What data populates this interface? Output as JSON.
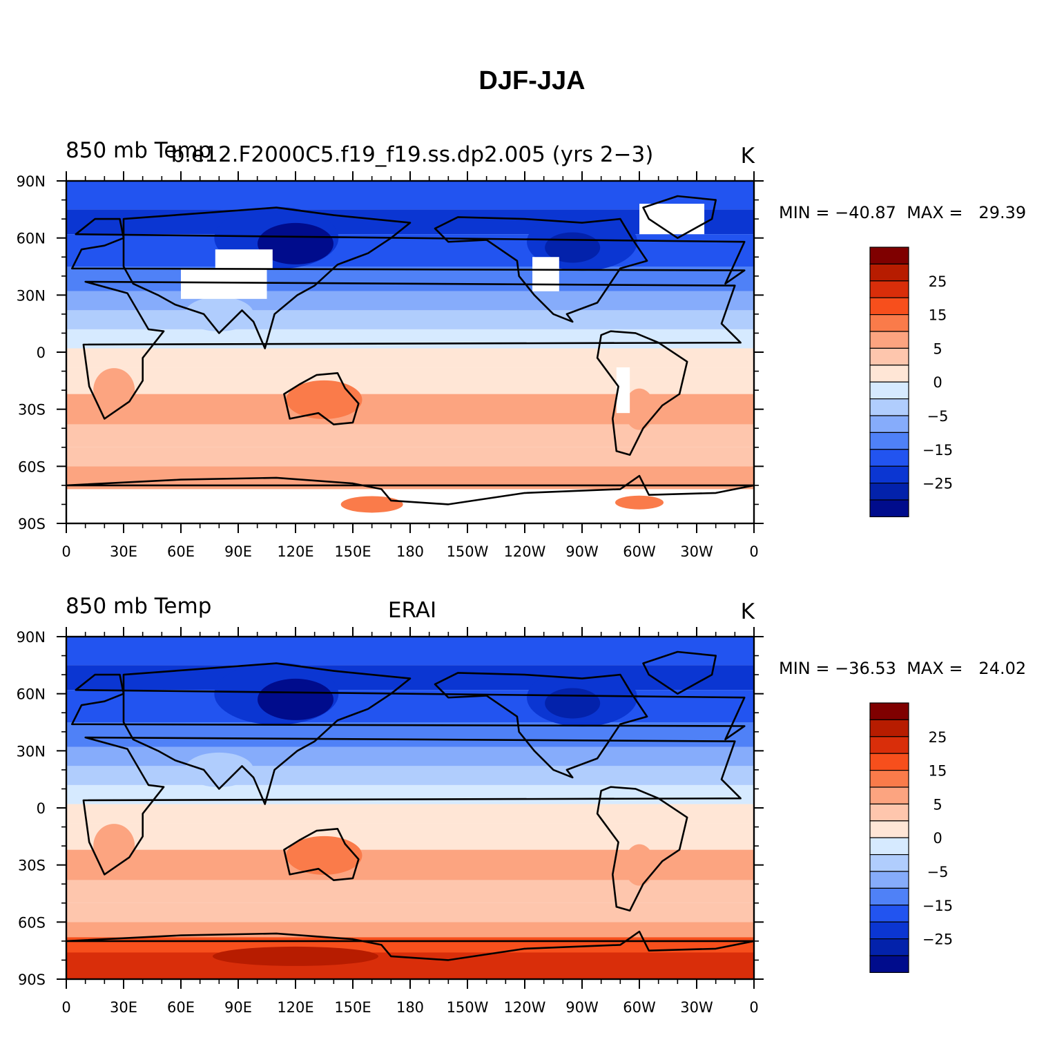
{
  "title": "DJF-JJA",
  "panels": [
    {
      "left_title": "850 mb Temp",
      "center_title": "b.e12.F2000C5.f19_f19.ss.dp2.005 (yrs 2−3)",
      "units": "K",
      "min_label": "MIN =",
      "min": "−40.87",
      "max_label": "MAX =",
      "max": "29.39",
      "missing_data": true,
      "antarctic_tone": "light"
    },
    {
      "left_title": "850 mb Temp",
      "center_title": "ERAI",
      "units": "K",
      "min_label": "MIN =",
      "min": "−36.53",
      "max_label": "MAX =",
      "max": "24.02",
      "missing_data": false,
      "antarctic_tone": "dark"
    }
  ],
  "axes": {
    "lat_labels": [
      "90N",
      "60N",
      "30N",
      "0",
      "30S",
      "60S",
      "90S"
    ],
    "lon_labels": [
      "0",
      "30E",
      "60E",
      "90E",
      "120E",
      "150E",
      "180",
      "150W",
      "120W",
      "90W",
      "60W",
      "30W",
      "0"
    ]
  },
  "colorbar": {
    "colors": [
      "#7f0000",
      "#b71c00",
      "#d92e0a",
      "#f74f1c",
      "#fa7b4a",
      "#fca480",
      "#fec6ad",
      "#ffe6d6",
      "#d6eaff",
      "#b0cdfd",
      "#86acfb",
      "#4f81f7",
      "#2254f0",
      "#0b36d2",
      "#0322ab",
      "#000c8c"
    ],
    "labels": [
      "25",
      "15",
      "5",
      "0",
      "−5",
      "−15",
      "−25"
    ]
  }
}
